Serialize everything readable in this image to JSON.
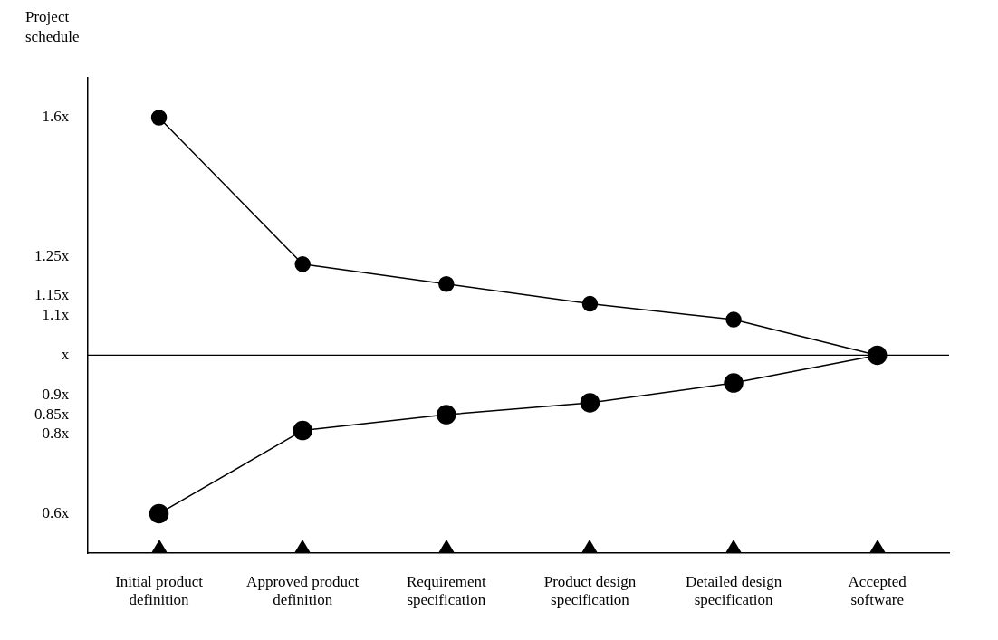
{
  "chart_data": {
    "type": "line",
    "ylabel": "Project schedule",
    "categories": [
      "Initial product definition",
      "Approved product definition",
      "Requirement specification",
      "Product design specification",
      "Detailed design specification",
      "Accepted software"
    ],
    "series": [
      {
        "color": "#000000",
        "values": [
          1.6,
          1.23,
          1.18,
          1.13,
          1.09,
          1.0
        ]
      },
      {
        "color": "#000000",
        "values": [
          0.6,
          0.81,
          0.85,
          0.88,
          0.93,
          1.0
        ]
      }
    ],
    "ylim": [
      0.5,
      1.7
    ],
    "yticks": [
      {
        "value": 0.6,
        "label": "0.6x"
      },
      {
        "value": 0.8,
        "label": "0.8x"
      },
      {
        "value": 0.85,
        "label": "0.85x"
      },
      {
        "value": 0.9,
        "label": "0.9x"
      },
      {
        "value": 1,
        "label": "x"
      },
      {
        "value": 1.1,
        "label": "1.1x"
      },
      {
        "value": 1.15,
        "label": "1.15x"
      },
      {
        "value": 1.25,
        "label": "1.25x"
      },
      {
        "value": 1.6,
        "label": "1.6x"
      }
    ],
    "ref_lines": [
      {
        "axis": "y",
        "value": 1,
        "color": "#000000"
      }
    ],
    "grid": false,
    "legend": false,
    "marker": "circle",
    "line_style": "solid"
  }
}
